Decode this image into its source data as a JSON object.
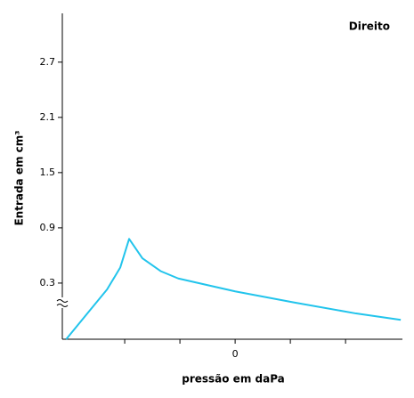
{
  "chart_data": {
    "type": "line",
    "title": "Direito",
    "x_label": "pressão em daPa",
    "y_label": "Entrada em cm³",
    "x": [
      -306,
      -265,
      -232,
      -208,
      -192,
      -168,
      -135,
      -103,
      0,
      106,
      219,
      300
    ],
    "series": [
      {
        "name": "Direito",
        "color": "#22c4ec",
        "values": [
          -0.31,
          -0.01,
          0.23,
          0.47,
          0.78,
          0.57,
          0.43,
          0.35,
          0.21,
          0.09,
          -0.03,
          -0.1
        ]
      }
    ],
    "xlim": [
      -313,
      303
    ],
    "ylim": [
      -0.31,
      3.23
    ],
    "xticks": [
      {
        "value": -200,
        "label": null
      },
      {
        "value": -100,
        "label": null
      },
      0,
      {
        "value": 100,
        "label": null
      },
      {
        "value": 200,
        "label": null
      }
    ],
    "yticks": [
      0.3,
      0.9,
      1.5,
      2.1,
      2.7
    ]
  }
}
